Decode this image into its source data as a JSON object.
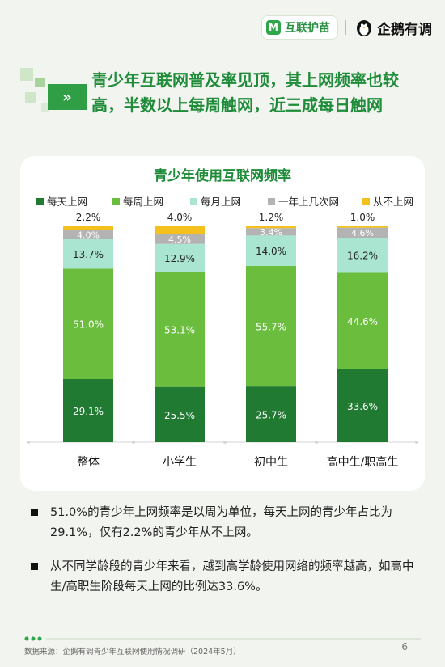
{
  "brand": {
    "badge_text": "互联护苗",
    "badge_icon": "M",
    "partner_text": "企鹅有调",
    "green": "#2fa64a"
  },
  "headline": "青少年互联网普及率见顶，其上网频率也较高，半数以上每周触网，近三成每日触网",
  "arrow_label": "»",
  "chart_data": {
    "type": "bar",
    "stacked": true,
    "percent": true,
    "title": "青少年使用互联网频率",
    "categories": [
      "整体",
      "小学生",
      "初中生",
      "高中生/职高生"
    ],
    "series": [
      {
        "name": "每天上网",
        "color": "#217a32",
        "values": [
          29.1,
          25.5,
          25.7,
          33.6
        ]
      },
      {
        "name": "每周上网",
        "color": "#6bbd3e",
        "values": [
          51.0,
          53.1,
          55.7,
          44.6
        ]
      },
      {
        "name": "每月上网",
        "color": "#a9e5d1",
        "values": [
          13.7,
          12.9,
          14.0,
          16.2
        ]
      },
      {
        "name": "一年上几次网",
        "color": "#b3b3b3",
        "values": [
          4.0,
          4.5,
          3.4,
          4.6
        ]
      },
      {
        "name": "从不上网",
        "color": "#f3c01e",
        "values": [
          2.2,
          4.0,
          1.2,
          1.0
        ]
      }
    ],
    "ylim": [
      0,
      100
    ],
    "legend_position": "top",
    "grid": false
  },
  "bullets": [
    "51.0%的青少年上网频率是以周为单位，每天上网的青少年占比为29.1%，仅有2.2%的青少年从不上网。",
    "从不同学龄段的青少年来看，越到高学龄使用网络的频率越高，如高中生/高职生阶段每天上网的比例达33.6%。"
  ],
  "source": "数据来源：企鹅有调青少年互联网使用情况调研（2024年5月）",
  "page_number": "6"
}
